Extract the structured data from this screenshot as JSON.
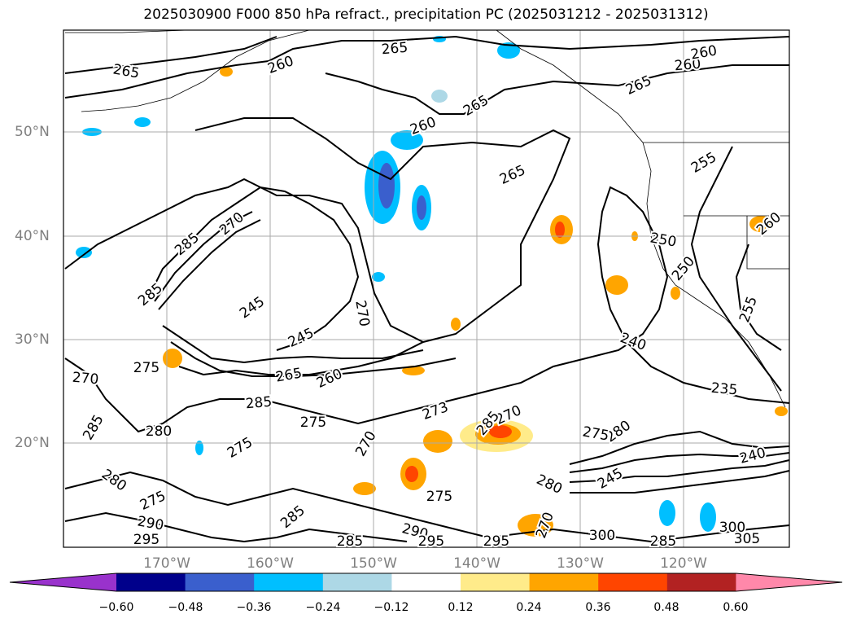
{
  "title": "2025030900 F000 850 hPa refract., precipitation PC (2025031212 - 2025031312)",
  "latitude_labels": [
    "50°N",
    "40°N",
    "30°N",
    "20°N"
  ],
  "longitude_labels": [
    "170°W",
    "160°W",
    "150°W",
    "140°W",
    "130°W",
    "120°W"
  ],
  "contour_labels": [
    "265",
    "260",
    "265",
    "260",
    "265",
    "260",
    "265",
    "265",
    "260",
    "255",
    "260",
    "285",
    "270",
    "250",
    "250",
    "255",
    "285",
    "245",
    "270",
    "245",
    "240",
    "275",
    "265",
    "260",
    "235",
    "270",
    "285",
    "275",
    "285",
    "280",
    "280",
    "275",
    "270",
    "273",
    "270",
    "275",
    "280",
    "240",
    "285",
    "275",
    "245",
    "290",
    "295",
    "290",
    "285",
    "270",
    "280",
    "300",
    "305",
    "285",
    "295",
    "275",
    "295",
    "300",
    "285"
  ],
  "colorbar": {
    "tick_labels": [
      "−0.60",
      "−0.48",
      "−0.36",
      "−0.24",
      "−0.12",
      "0.12",
      "0.24",
      "0.36",
      "0.48",
      "0.60"
    ],
    "colors": [
      "#9932cc",
      "#00008b",
      "#3a5fcd",
      "#00bfff",
      "#add8e6",
      "#ffffff",
      "#ffeb8a",
      "#ffa500",
      "#ff4500",
      "#b22222",
      "#ff88aa"
    ]
  }
}
